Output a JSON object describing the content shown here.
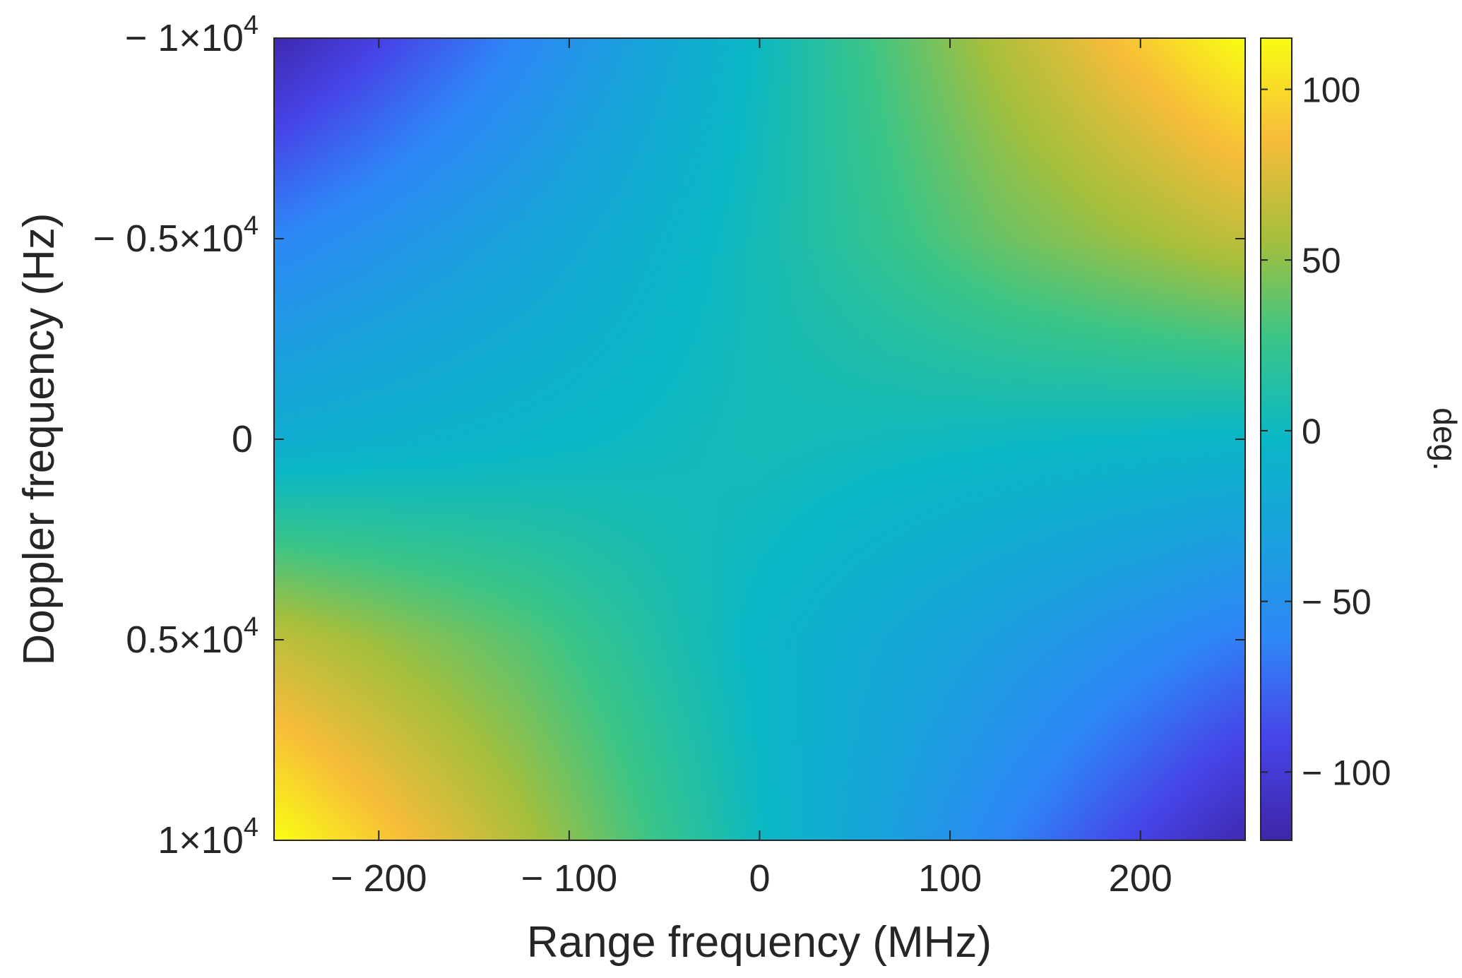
{
  "chart_data": {
    "type": "heatmap",
    "xlabel": "Range frequency (MHz)",
    "ylabel": "Doppler frequency (Hz)",
    "xlim": [
      -255,
      255
    ],
    "ylim": [
      -10000,
      10000
    ],
    "y_direction": "reversed",
    "xticks": [
      {
        "value": -200,
        "label": "− 200"
      },
      {
        "value": -100,
        "label": "− 100"
      },
      {
        "value": 0,
        "label": "0"
      },
      {
        "value": 100,
        "label": "100"
      },
      {
        "value": 200,
        "label": "200"
      }
    ],
    "yticks": [
      {
        "value": -10000,
        "label": "− 1×10",
        "exp": "4"
      },
      {
        "value": -5000,
        "label": "− 0.5×10",
        "exp": "4"
      },
      {
        "value": 0,
        "label": "0",
        "exp": ""
      },
      {
        "value": 5000,
        "label": "0.5×10",
        "exp": "4"
      },
      {
        "value": 10000,
        "label": "1×10",
        "exp": "4"
      }
    ],
    "x": [
      -250,
      -125,
      0,
      125,
      250
    ],
    "y": [
      -10000,
      -5000,
      0,
      5000,
      10000
    ],
    "z": [
      [
        -115,
        -60,
        0,
        60,
        115
      ],
      [
        -60,
        -30,
        5,
        40,
        65
      ],
      [
        -15,
        -5,
        5,
        0,
        -5
      ],
      [
        65,
        35,
        -5,
        -35,
        -65
      ],
      [
        115,
        60,
        0,
        -60,
        -115
      ]
    ],
    "colorbar": {
      "label": "deg.",
      "clim": [
        -120,
        115
      ],
      "ticks": [
        {
          "value": -100,
          "label": "− 100"
        },
        {
          "value": -50,
          "label": "− 50"
        },
        {
          "value": 0,
          "label": "0"
        },
        {
          "value": 50,
          "label": "50"
        },
        {
          "value": 100,
          "label": "100"
        }
      ],
      "colormap": "parula"
    },
    "grid": false
  }
}
